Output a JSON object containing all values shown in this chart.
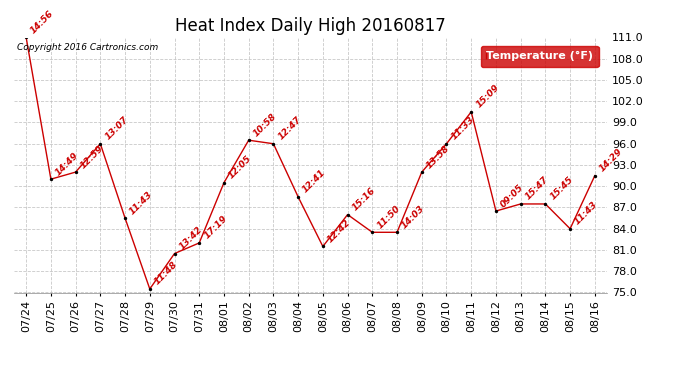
{
  "title": "Heat Index Daily High 20160817",
  "copyright": "Copyright 2016 Cartronics.com",
  "legend_label": "Temperature (°F)",
  "dates": [
    "07/24",
    "07/25",
    "07/26",
    "07/27",
    "07/28",
    "07/29",
    "07/30",
    "07/31",
    "08/01",
    "08/02",
    "08/03",
    "08/04",
    "08/05",
    "08/06",
    "08/07",
    "08/08",
    "08/09",
    "08/10",
    "08/11",
    "08/12",
    "08/13",
    "08/14",
    "08/15",
    "08/16"
  ],
  "values": [
    111.0,
    91.0,
    92.0,
    96.0,
    85.5,
    75.5,
    80.5,
    82.0,
    90.5,
    96.5,
    96.0,
    88.5,
    81.5,
    86.0,
    83.5,
    83.5,
    92.0,
    96.0,
    100.5,
    86.5,
    87.5,
    87.5,
    84.0,
    91.5
  ],
  "annotations": [
    "14:56",
    "14:49",
    "12:59",
    "13:07",
    "11:43",
    "11:48",
    "13:42",
    "17:19",
    "12:05",
    "10:58",
    "12:47",
    "12:41",
    "12:42",
    "15:16",
    "11:50",
    "14:03",
    "13:58",
    "11:33",
    "15:09",
    "09:05",
    "15:47",
    "15:45",
    "11:43",
    "14:29"
  ],
  "ylim": [
    75.0,
    111.0
  ],
  "yticks": [
    75.0,
    78.0,
    81.0,
    84.0,
    87.0,
    90.0,
    93.0,
    96.0,
    99.0,
    102.0,
    105.0,
    108.0,
    111.0
  ],
  "line_color": "#cc0000",
  "marker_color": "#000000",
  "annotation_color": "#cc0000",
  "bg_color": "#ffffff",
  "grid_color": "#bbbbbb",
  "legend_bg": "#cc0000",
  "legend_text": "#ffffff",
  "title_fontsize": 12,
  "axis_fontsize": 8,
  "annotation_fontsize": 6.5,
  "figwidth": 6.9,
  "figheight": 3.75,
  "dpi": 100
}
